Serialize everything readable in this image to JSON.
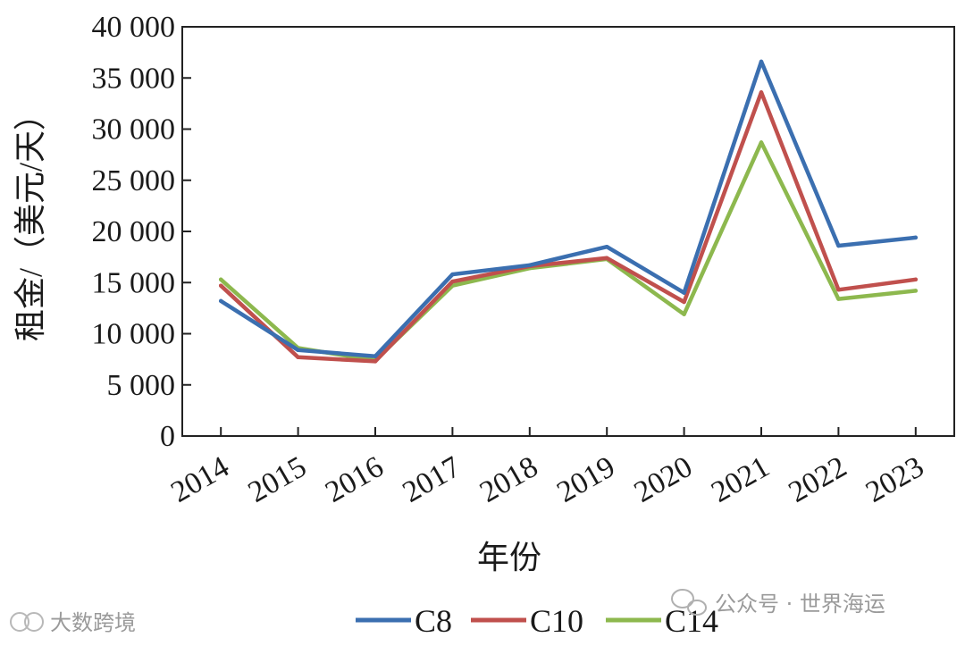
{
  "chart_data": {
    "type": "line",
    "title": "",
    "xlabel": "年份",
    "ylabel": "租金/（美元/天）",
    "categories": [
      "2014",
      "2015",
      "2016",
      "2017",
      "2018",
      "2019",
      "2020",
      "2021",
      "2022",
      "2023"
    ],
    "y_ticks": [
      0,
      5000,
      10000,
      15000,
      20000,
      25000,
      30000,
      35000,
      40000
    ],
    "y_tick_labels": [
      "0",
      "5 000",
      "10 000",
      "15 000",
      "20 000",
      "25 000",
      "30 000",
      "35 000",
      "40 000"
    ],
    "ylim": [
      0,
      40000
    ],
    "grid": false,
    "legend_position": "bottom",
    "series": [
      {
        "name": "C8",
        "color": "#3b6fb0",
        "values": [
          13200,
          8400,
          7800,
          15800,
          16700,
          18500,
          14000,
          36600,
          18600,
          19400
        ]
      },
      {
        "name": "C10",
        "color": "#c0504d",
        "values": [
          14700,
          7700,
          7300,
          15100,
          16600,
          17400,
          13100,
          33600,
          14300,
          15300
        ]
      },
      {
        "name": "C14",
        "color": "#8db84e",
        "values": [
          15300,
          8600,
          7400,
          14700,
          16400,
          17300,
          11900,
          28700,
          13400,
          14200
        ]
      }
    ]
  },
  "watermarks": {
    "right": "公众号 · 世界海运",
    "left": "大数跨境"
  }
}
